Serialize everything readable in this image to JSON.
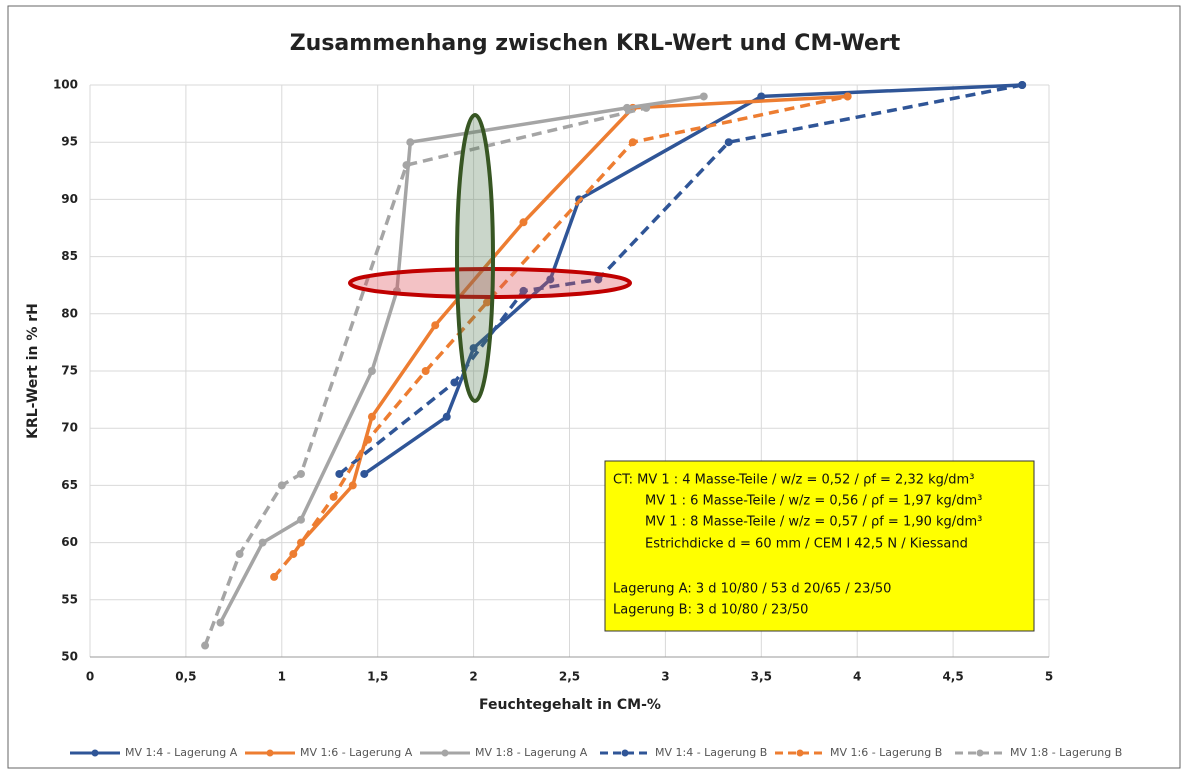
{
  "chart_data": {
    "type": "line",
    "title": "Zusammenhang zwischen KRL-Wert und CM-Wert",
    "xlabel": "Feuchtegehalt in CM-%",
    "ylabel": "KRL-Wert in % rH",
    "xlim": [
      0,
      5
    ],
    "ylim": [
      50,
      100
    ],
    "xticks": [
      0,
      {
        "value": 0.5,
        "label": "0,5"
      },
      1,
      {
        "value": 1.5,
        "label": "1,5"
      },
      2,
      {
        "value": 2.5,
        "label": "2,5"
      },
      3,
      {
        "value": 3.5,
        "label": "3,5"
      },
      4,
      {
        "value": 4.5,
        "label": "4,5"
      },
      5
    ],
    "yticks": [
      50,
      55,
      60,
      65,
      70,
      75,
      80,
      85,
      90,
      95,
      100
    ],
    "grid": true,
    "legend": "bottom",
    "series": [
      {
        "name": "MV 1:4 - Lagerung A",
        "color": "#2f5597",
        "dash": false,
        "x": [
          1.43,
          1.86,
          2.0,
          2.4,
          2.55,
          3.5,
          4.86
        ],
        "values": [
          66,
          71,
          77,
          83,
          90,
          99,
          100
        ]
      },
      {
        "name": "MV 1:6 - Lagerung A",
        "color": "#ed7d31",
        "dash": false,
        "x": [
          1.1,
          1.37,
          1.47,
          1.8,
          2.26,
          2.83,
          3.95
        ],
        "values": [
          60,
          65,
          71,
          79,
          88,
          98,
          99
        ]
      },
      {
        "name": "MV 1:8 - Lagerung A",
        "color": "#a5a5a5",
        "dash": false,
        "x": [
          0.68,
          0.9,
          1.1,
          1.47,
          1.6,
          1.67,
          2.8,
          3.2
        ],
        "values": [
          53,
          60,
          62,
          75,
          82,
          95,
          98,
          99
        ]
      },
      {
        "name": "MV 1:4 - Lagerung B",
        "color": "#2f5597",
        "dash": true,
        "x": [
          1.3,
          1.9,
          2.26,
          2.65,
          3.33,
          4.86
        ],
        "values": [
          66,
          74,
          82,
          83,
          95,
          100
        ]
      },
      {
        "name": "MV 1:6 - Lagerung B",
        "color": "#ed7d31",
        "dash": true,
        "x": [
          0.96,
          1.06,
          1.27,
          1.45,
          1.75,
          2.07,
          2.83,
          3.95
        ],
        "values": [
          57,
          59,
          64,
          69,
          75,
          81,
          95,
          99
        ]
      },
      {
        "name": "MV 1:8 - Lagerung B",
        "color": "#a5a5a5",
        "dash": true,
        "x": [
          0.6,
          0.78,
          1.0,
          1.1,
          1.65,
          2.9
        ],
        "values": [
          51,
          59,
          65,
          66,
          93,
          98
        ]
      }
    ],
    "annotation_lines": [
      "CT: MV 1 : 4 Masse-Teile / w/z = 0,52 / ρf = 2,32 kg/dm³",
      "MV 1 : 6 Masse-Teile / w/z = 0,56 / ρf = 1,97 kg/dm³",
      "MV 1 : 8 Masse-Teile / w/z = 0,57 / ρf = 1,90 kg/dm³",
      "Estrichdicke d = 60 mm / CEM I 42,5 N / Kiessand",
      "Lagerung A: 3 d 10/80 / 53 d 20/65 / 23/50",
      "Lagerung B: 3 d 10/80 / 23/50"
    ]
  }
}
